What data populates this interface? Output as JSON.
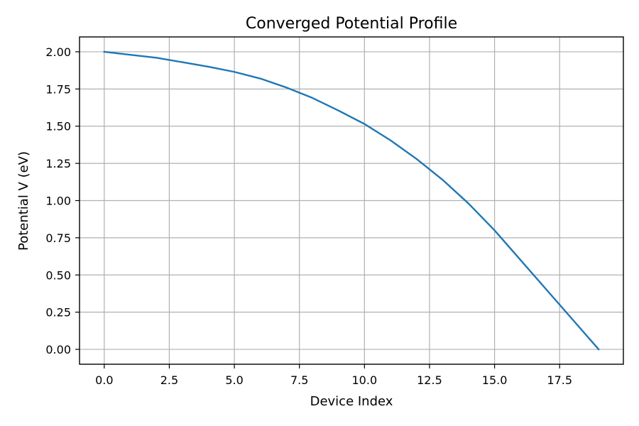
{
  "chart_data": {
    "type": "line",
    "title": "Converged Potential Profile",
    "xlabel": "Device Index",
    "ylabel": "Potential V (eV)",
    "xlim": [
      -0.95,
      19.95
    ],
    "ylim": [
      -0.1,
      2.1
    ],
    "xticks": [
      0.0,
      2.5,
      5.0,
      7.5,
      10.0,
      12.5,
      15.0,
      17.5
    ],
    "xtick_labels": [
      "0.0",
      "2.5",
      "5.0",
      "7.5",
      "10.0",
      "12.5",
      "15.0",
      "17.5"
    ],
    "yticks": [
      0.0,
      0.25,
      0.5,
      0.75,
      1.0,
      1.25,
      1.5,
      1.75,
      2.0
    ],
    "ytick_labels": [
      "0.00",
      "0.25",
      "0.50",
      "0.75",
      "1.00",
      "1.25",
      "1.50",
      "1.75",
      "2.00"
    ],
    "grid": true,
    "colors": {
      "line": "#1f77b4"
    },
    "series": [
      {
        "x": [
          0,
          1,
          2,
          3,
          4,
          5,
          6,
          7,
          8,
          9,
          10,
          11,
          12,
          13,
          14,
          15,
          16,
          17,
          18,
          19
        ],
        "values": [
          2.0,
          1.98,
          1.96,
          1.93,
          1.9,
          1.865,
          1.82,
          1.76,
          1.69,
          1.605,
          1.515,
          1.405,
          1.28,
          1.14,
          0.98,
          0.8,
          0.6,
          0.4,
          0.2,
          0.0
        ]
      }
    ]
  }
}
